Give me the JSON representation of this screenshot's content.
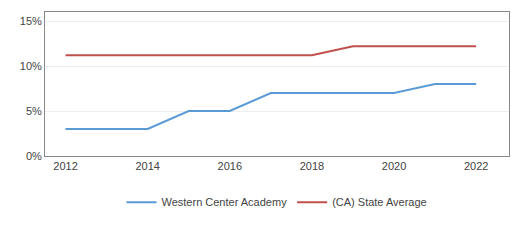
{
  "chart_data": {
    "type": "line",
    "x": [
      2012,
      2013,
      2014,
      2015,
      2016,
      2017,
      2018,
      2019,
      2020,
      2021,
      2022
    ],
    "series": [
      {
        "name": "Western Center Academy",
        "color": "#5b9bd5",
        "values": [
          0.03,
          0.03,
          0.03,
          0.05,
          0.05,
          0.07,
          0.07,
          0.07,
          0.07,
          0.08,
          0.08
        ]
      },
      {
        "name": "(CA) State Average",
        "color": "#c0504d",
        "values": [
          0.112,
          0.112,
          0.112,
          0.112,
          0.112,
          0.112,
          0.112,
          0.122,
          0.122,
          0.122,
          0.122
        ]
      }
    ],
    "xlim": [
      2011.5,
      2022.8
    ],
    "xticks": [
      2012,
      2014,
      2016,
      2018,
      2020,
      2022
    ],
    "ylim": [
      0.0,
      0.16
    ],
    "yticks": [
      {
        "value": 0.0,
        "label": "0%"
      },
      {
        "value": 0.05,
        "label": "5%"
      },
      {
        "value": 0.1,
        "label": "10%"
      },
      {
        "value": 0.15,
        "label": "15%"
      }
    ],
    "grid": "y",
    "legend": "bottom"
  }
}
